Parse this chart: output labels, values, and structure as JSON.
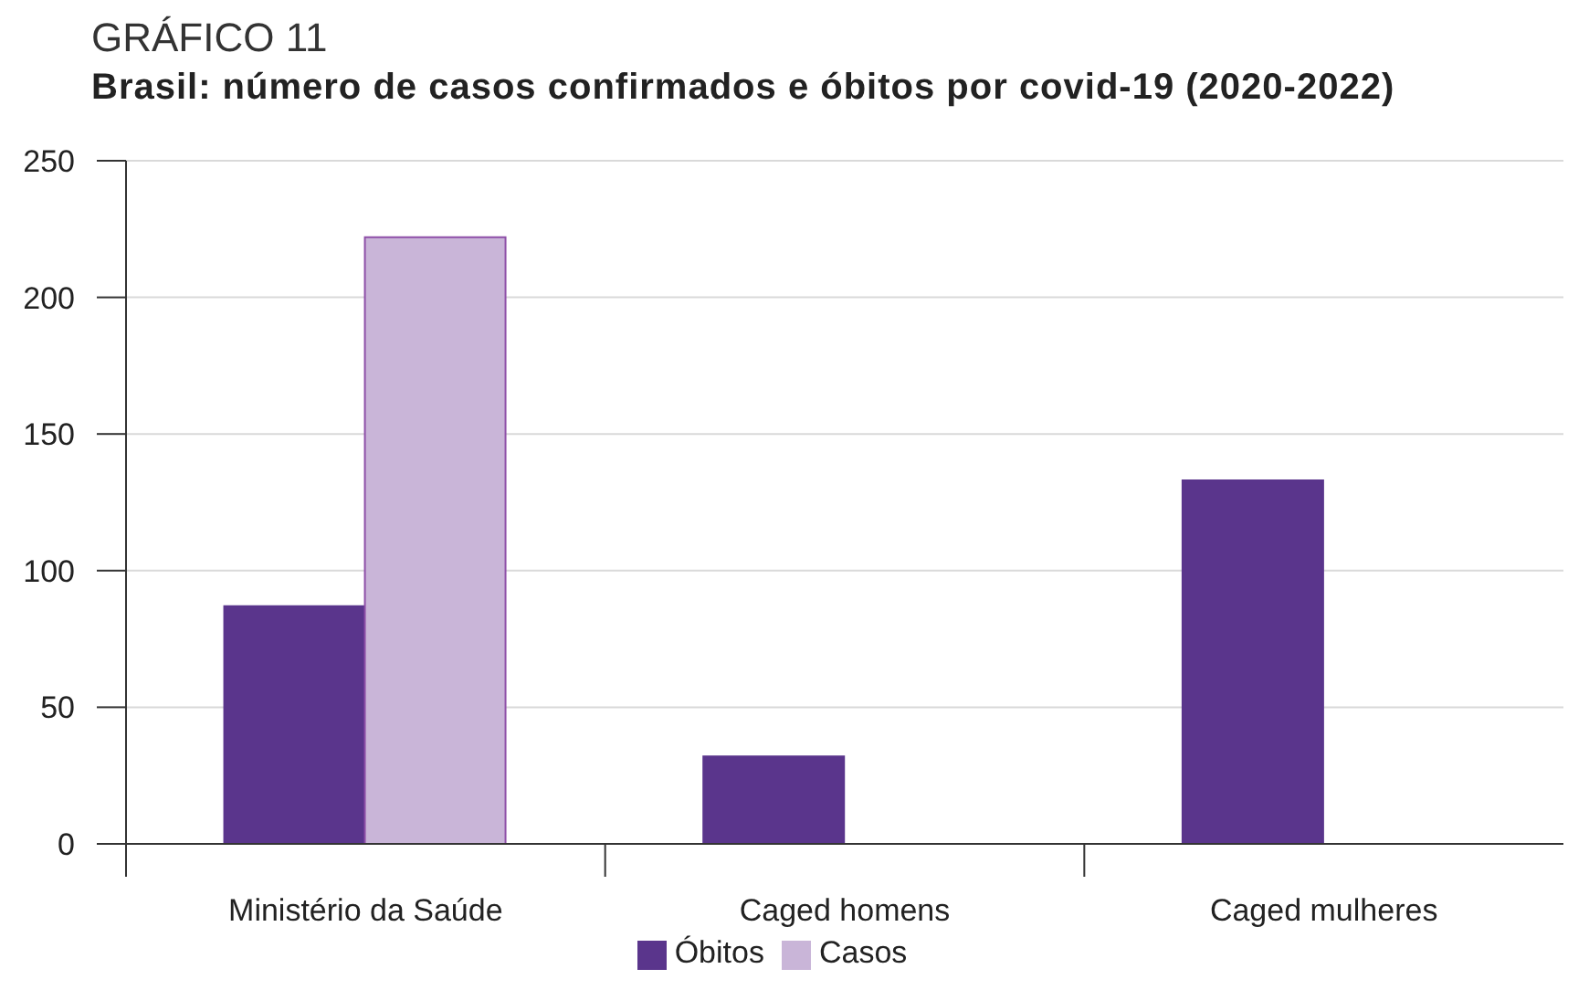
{
  "chart_data": {
    "type": "bar",
    "title": "GRÁFICO 11",
    "subtitle": "Brasil: número de casos confirmados e óbitos por covid-19 (2020-2022)",
    "categories": [
      "Ministério da Saúde",
      "Caged homens",
      "Caged mulheres"
    ],
    "series": [
      {
        "name": "Óbitos",
        "color": "#5a358c",
        "values": [
          87,
          32,
          133
        ]
      },
      {
        "name": "Casos",
        "color": "#c9b5d8",
        "values": [
          222,
          null,
          null
        ]
      }
    ],
    "ylim": [
      0,
      250
    ],
    "yticks": [
      0,
      50,
      100,
      150,
      200,
      250
    ],
    "grid": "y",
    "legend": "bottom"
  }
}
